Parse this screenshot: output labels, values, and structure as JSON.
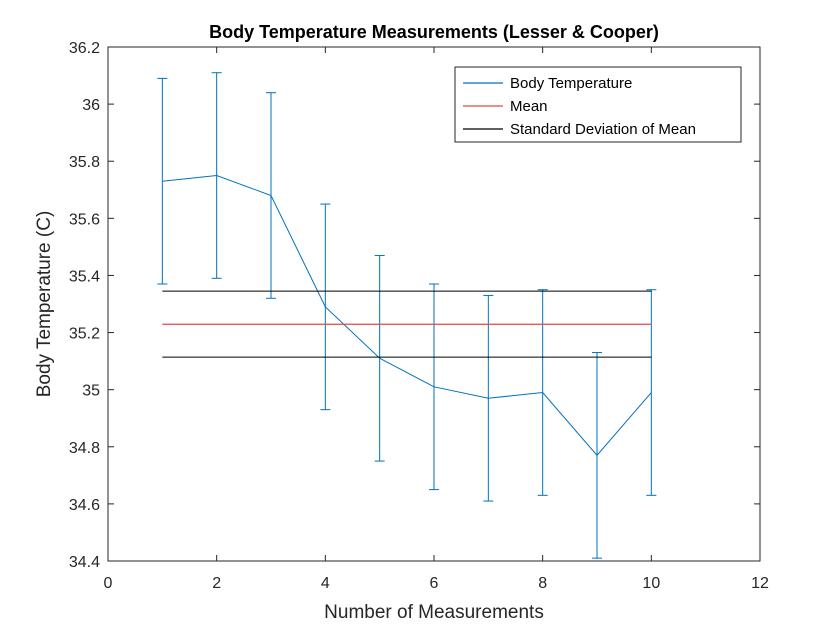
{
  "chart_data": {
    "type": "line",
    "title": "Body Temperature Measurements (Lesser & Cooper)",
    "xlabel": "Number of Measurements",
    "ylabel": "Body Temperature (C)",
    "xlim": [
      0,
      12
    ],
    "ylim": [
      34.4,
      36.2
    ],
    "xticks": [
      0,
      2,
      4,
      6,
      8,
      10,
      12
    ],
    "yticks": [
      34.4,
      34.6,
      34.8,
      35,
      35.2,
      35.4,
      35.6,
      35.8,
      36,
      36.2
    ],
    "grid": false,
    "legend_position": "top-right",
    "series": [
      {
        "name": "Body Temperature",
        "type": "errorbar",
        "color": "#0072BD",
        "x": [
          1,
          2,
          3,
          4,
          5,
          6,
          7,
          8,
          9,
          10
        ],
        "values": [
          35.73,
          35.75,
          35.68,
          35.29,
          35.11,
          35.01,
          34.97,
          34.99,
          34.77,
          34.99
        ],
        "error": 0.36
      },
      {
        "name": "Mean",
        "type": "line",
        "color": "#E0484C",
        "x": [
          1,
          10
        ],
        "values": [
          35.229,
          35.229
        ]
      },
      {
        "name": "Standard Deviation of Mean",
        "type": "line",
        "color": "#000000",
        "lines": [
          {
            "x": [
              1,
              10
            ],
            "values": [
              35.345,
              35.345
            ]
          },
          {
            "x": [
              1,
              10
            ],
            "values": [
              35.114,
              35.114
            ]
          }
        ]
      }
    ]
  }
}
